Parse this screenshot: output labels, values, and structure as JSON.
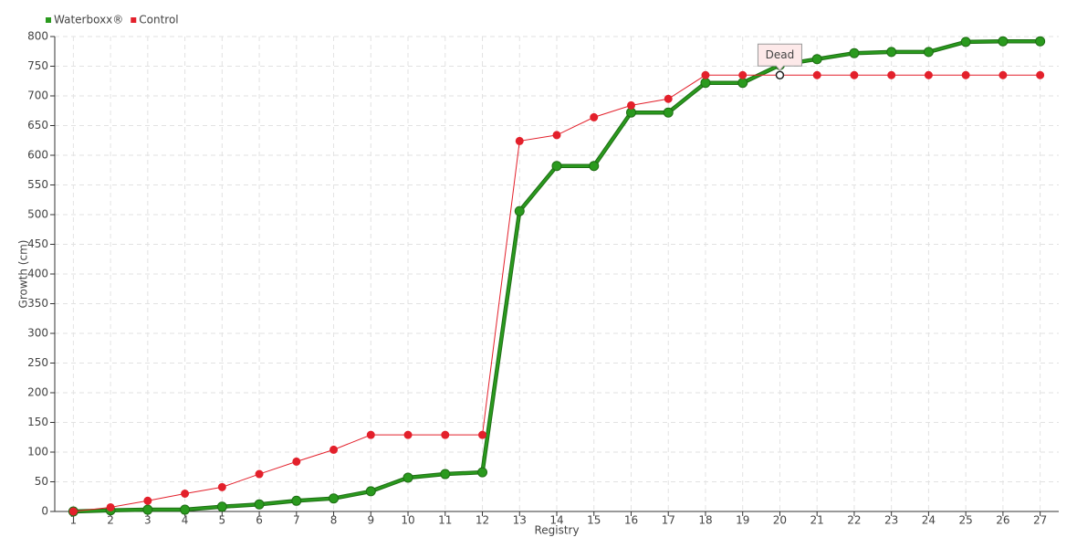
{
  "chart_data": {
    "type": "line",
    "x_label": "Registry",
    "y_label": "Growth (cm)",
    "categories": [
      "1",
      "2",
      "3",
      "4",
      "5",
      "6",
      "7",
      "8",
      "9",
      "10",
      "11",
      "12",
      "13",
      "14",
      "15",
      "16",
      "17",
      "18",
      "19",
      "20",
      "21",
      "22",
      "23",
      "24",
      "25",
      "26",
      "27"
    ],
    "series": [
      {
        "name": "Waterboxx®",
        "color": "#2a9a1e",
        "values": [
          0,
          2,
          3,
          3,
          8,
          12,
          18,
          22,
          34,
          57,
          63,
          66,
          506,
          582,
          582,
          672,
          672,
          722,
          722,
          752,
          762,
          772,
          774,
          774,
          791,
          792,
          792
        ]
      },
      {
        "name": "Control",
        "color": "#e3202b",
        "values": [
          0,
          7,
          18,
          30,
          41,
          63,
          84,
          104,
          129,
          129,
          129,
          129,
          624,
          634,
          664,
          684,
          695,
          735,
          735,
          735,
          735,
          735,
          735,
          735,
          735,
          735,
          735
        ]
      }
    ],
    "annotations": [
      {
        "text": "Dead",
        "series": "Control",
        "x": "20"
      }
    ],
    "ylim": [
      0,
      800
    ],
    "yticks": [
      0,
      50,
      100,
      150,
      200,
      250,
      300,
      350,
      400,
      450,
      500,
      550,
      600,
      650,
      700,
      750,
      800
    ],
    "grid": true,
    "legend": "top-left"
  }
}
